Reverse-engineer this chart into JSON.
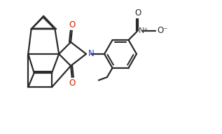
{
  "background_color": "#ffffff",
  "line_color": "#2b2b2b",
  "nitrogen_color": "#1a3fcc",
  "oxygen_color": "#cc2200",
  "bond_lw": 1.6,
  "figsize": [
    3.17,
    1.91
  ],
  "dpi": 100,
  "xlim": [
    -1.5,
    7.8
  ],
  "ylim": [
    -0.5,
    4.8
  ]
}
